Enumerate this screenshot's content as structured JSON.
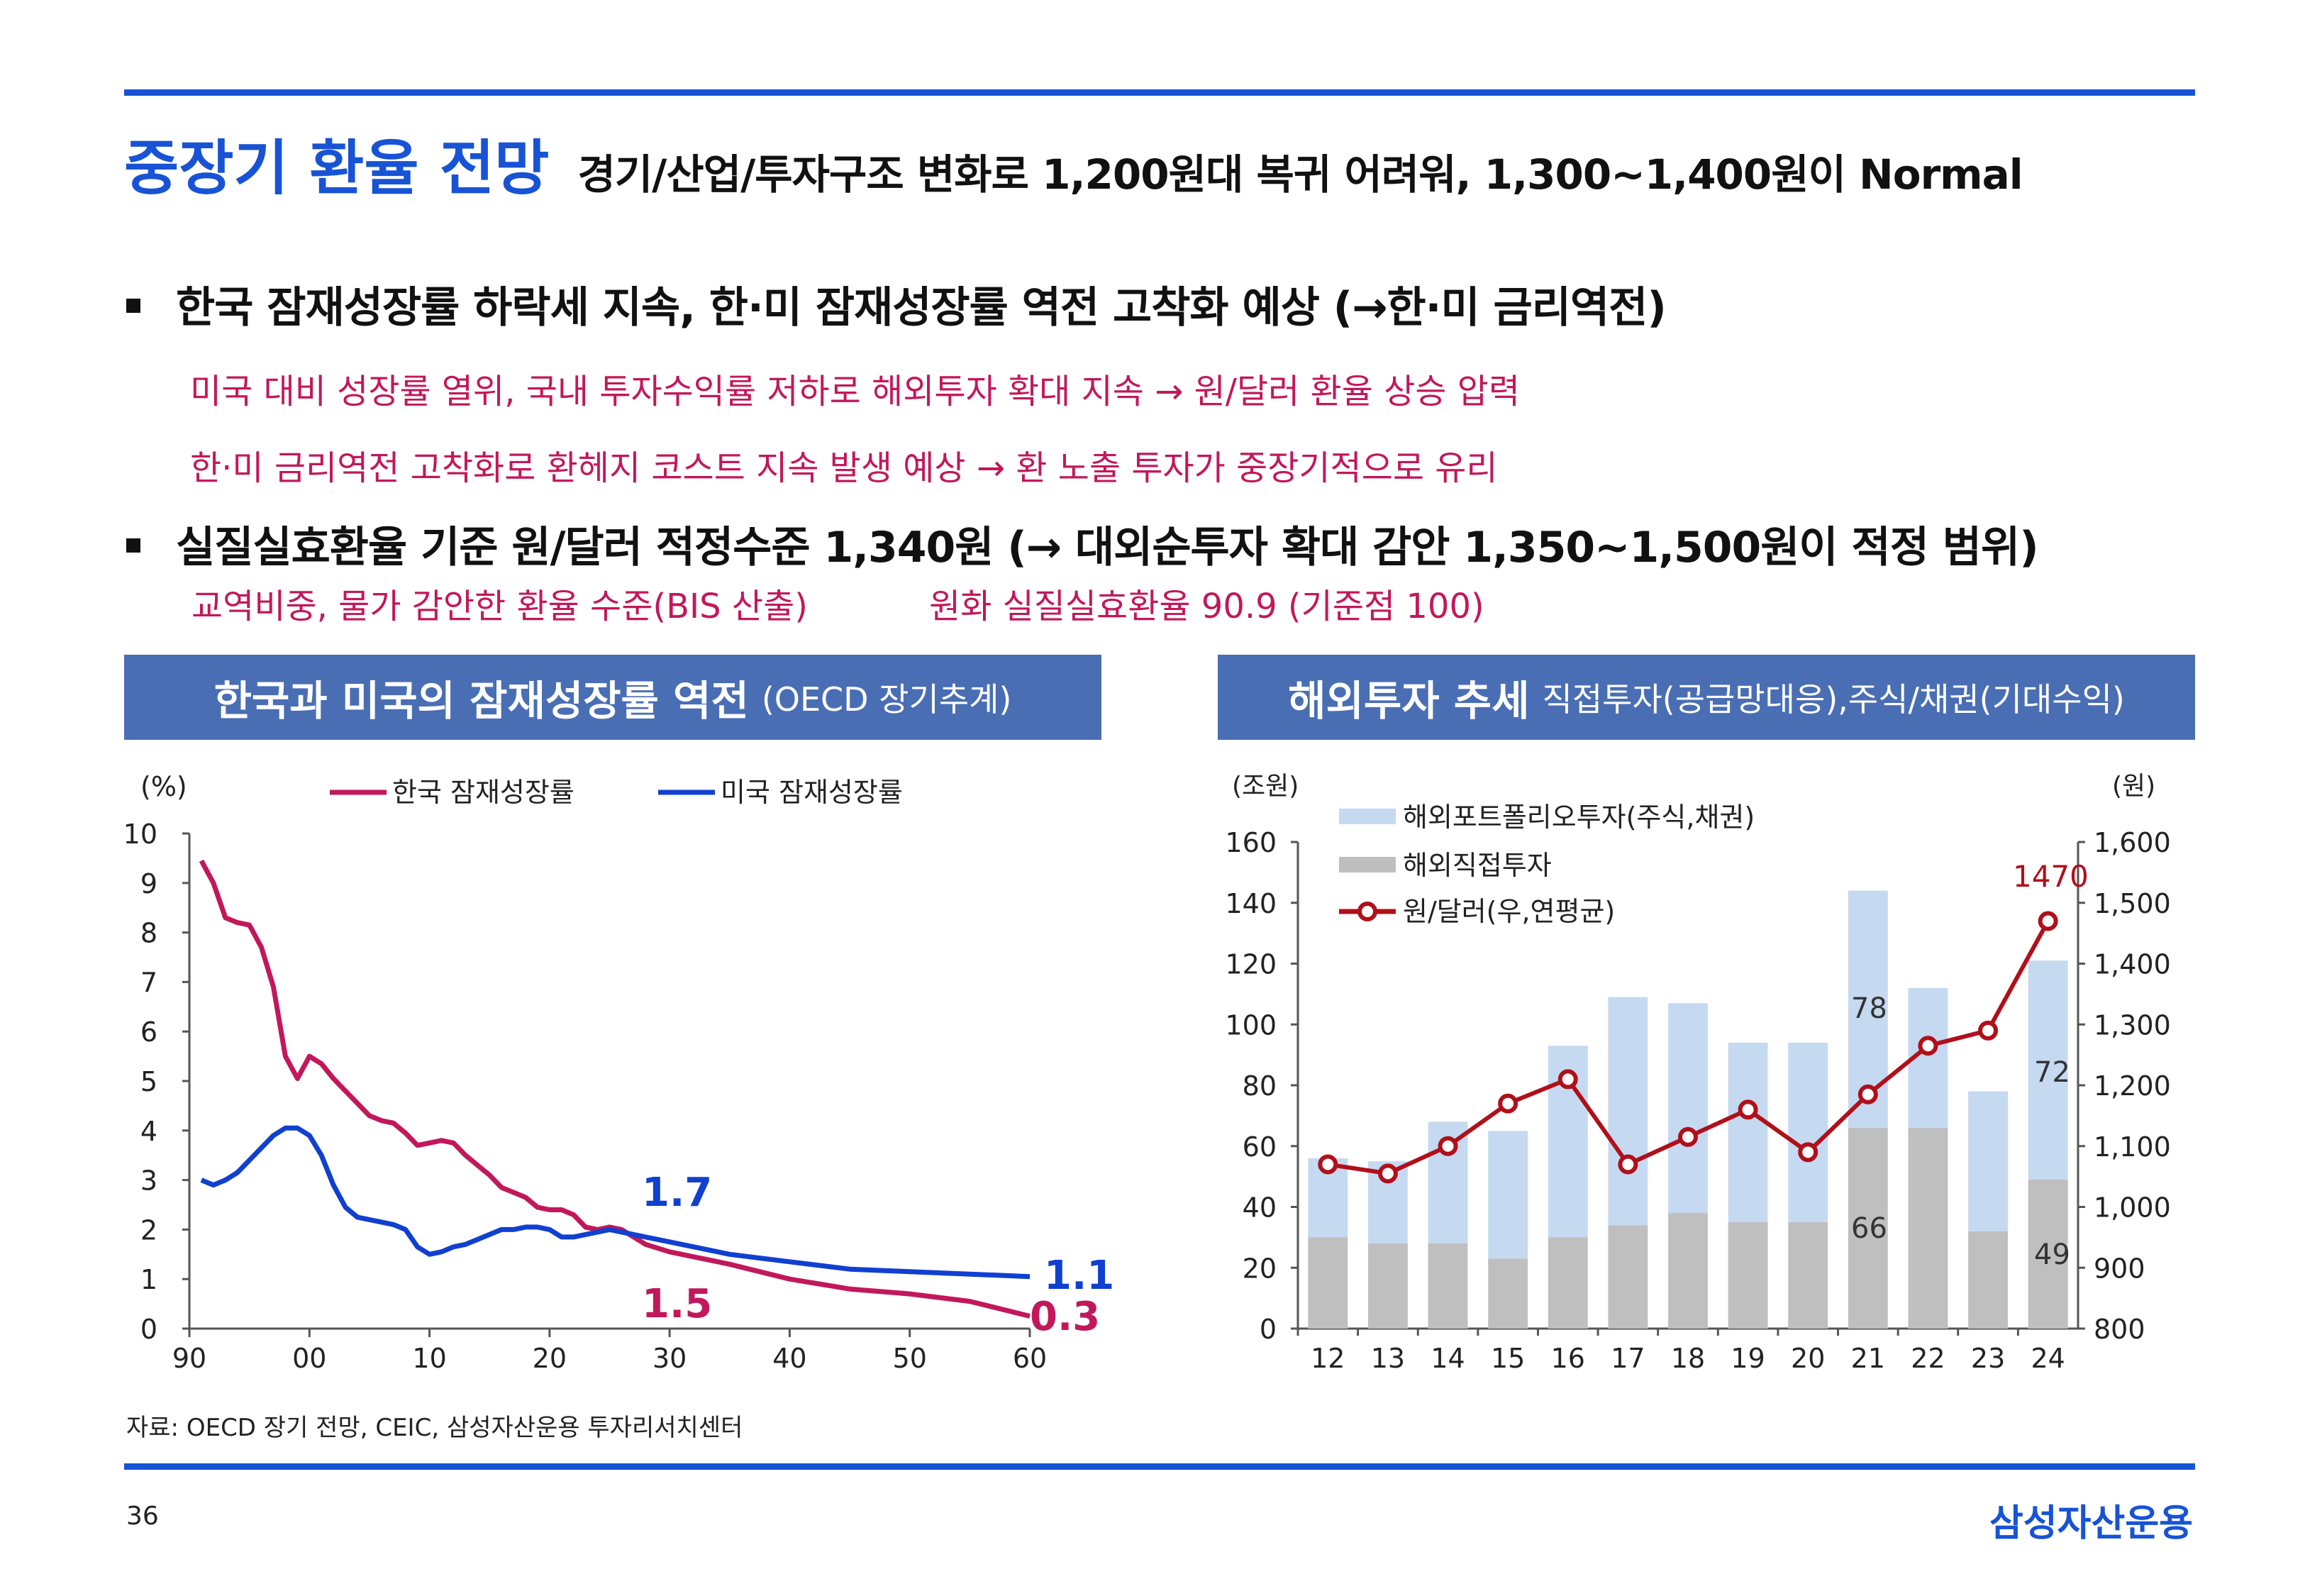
{
  "header": {
    "title": "중장기 환율 전망",
    "subtitle": "경기/산업/투자구조 변화로 1,200원대 복귀 어려워, 1,300~1,400원이 Normal"
  },
  "bullets": [
    {
      "text": "한국 잠재성장률 하락세 지속, 한·미 잠재성장률 역전 고착화 예상 (→한·미 금리역전)",
      "subs": [
        "미국 대비 성장률 열위, 국내 투자수익률 저하로 해외투자 확대 지속 → 원/달러 환율 상승 압력",
        "한·미 금리역전 고착화로 환헤지 코스트 지속 발생 예상 → 환 노출 투자가 중장기적으로 유리"
      ]
    },
    {
      "text": "실질실효환율 기준 원/달러 적정수준 1,340원 (→ 대외순투자 확대 감안 1,350~1,500원이 적정 범위)",
      "subs": [
        "교역비중, 물가 감안한 환율 수준(BIS 산출)",
        "원화 실질실효환율 90.9 (기준점 100)"
      ]
    }
  ],
  "left_panel": {
    "title": "한국과 미국의 잠재성장률 역전",
    "title_note": "(OECD 장기추계)"
  },
  "right_panel": {
    "title": "해외투자 추세",
    "title_note": "직접투자(공급망대응),주식/채권(기대수익)"
  },
  "colors": {
    "accent": "#1753d4",
    "panel": "#4a6eb4",
    "korea": "#c2185b",
    "us": "#1040d0",
    "portfolio": "#c5d9f1",
    "direct": "#bfbfbf",
    "krwusd": "#b0101a"
  },
  "chart_data": [
    {
      "type": "line",
      "unit_label": "(%)",
      "x_tick_labels": [
        "90",
        "00",
        "10",
        "20",
        "30",
        "40",
        "50",
        "60"
      ],
      "y_tick_labels": [
        "0",
        "1",
        "2",
        "3",
        "4",
        "5",
        "6",
        "7",
        "8",
        "9",
        "10"
      ],
      "ylim": [
        0,
        10
      ],
      "xlim": [
        1990,
        2060
      ],
      "series": [
        {
          "name": "한국 잠재성장률",
          "x": [
            1991,
            1992,
            1993,
            1994,
            1995,
            1996,
            1997,
            1998,
            1999,
            2000,
            2001,
            2002,
            2003,
            2004,
            2005,
            2006,
            2007,
            2008,
            2009,
            2010,
            2011,
            2012,
            2013,
            2014,
            2015,
            2016,
            2017,
            2018,
            2019,
            2020,
            2021,
            2022,
            2023,
            2024,
            2025,
            2026,
            2027,
            2028,
            2030,
            2035,
            2040,
            2045,
            2050,
            2055,
            2060
          ],
          "y": [
            9.45,
            9.0,
            8.3,
            8.2,
            8.15,
            7.7,
            6.9,
            5.5,
            5.05,
            5.5,
            5.35,
            5.05,
            4.8,
            4.55,
            4.3,
            4.2,
            4.15,
            3.95,
            3.7,
            3.75,
            3.8,
            3.75,
            3.5,
            3.3,
            3.1,
            2.85,
            2.75,
            2.65,
            2.45,
            2.4,
            2.4,
            2.3,
            2.05,
            2.0,
            2.05,
            2.0,
            1.85,
            1.7,
            1.55,
            1.3,
            1.0,
            0.8,
            0.7,
            0.55,
            0.25
          ]
        },
        {
          "name": "미국 잠재성장률",
          "x": [
            1991,
            1992,
            1993,
            1994,
            1995,
            1996,
            1997,
            1998,
            1999,
            2000,
            2001,
            2002,
            2003,
            2004,
            2005,
            2006,
            2007,
            2008,
            2009,
            2010,
            2011,
            2012,
            2013,
            2014,
            2015,
            2016,
            2017,
            2018,
            2019,
            2020,
            2021,
            2022,
            2023,
            2024,
            2025,
            2026,
            2027,
            2028,
            2030,
            2035,
            2040,
            2045,
            2050,
            2055,
            2060
          ],
          "y": [
            3.0,
            2.9,
            3.0,
            3.15,
            3.4,
            3.65,
            3.9,
            4.05,
            4.05,
            3.9,
            3.5,
            2.9,
            2.45,
            2.25,
            2.2,
            2.15,
            2.1,
            2.0,
            1.65,
            1.5,
            1.55,
            1.65,
            1.7,
            1.8,
            1.9,
            2.0,
            2.0,
            2.05,
            2.05,
            2.0,
            1.85,
            1.85,
            1.9,
            1.95,
            2.0,
            1.95,
            1.9,
            1.85,
            1.75,
            1.5,
            1.35,
            1.2,
            1.15,
            1.1,
            1.05
          ]
        }
      ],
      "annotations": [
        "1.7",
        "1.5",
        "1.1",
        "0.3"
      ]
    },
    {
      "type": "bar",
      "left_unit_label": "(조원)",
      "right_unit_label": "(원)",
      "categories": [
        "12",
        "13",
        "14",
        "15",
        "16",
        "17",
        "18",
        "19",
        "20",
        "21",
        "22",
        "23",
        "24"
      ],
      "left_tick_labels": [
        "0",
        "20",
        "40",
        "60",
        "80",
        "100",
        "120",
        "140",
        "160"
      ],
      "right_tick_labels": [
        "800",
        "900",
        "1,000",
        "1,100",
        "1,200",
        "1,300",
        "1,400",
        "1,500",
        "1,600"
      ],
      "ylim_left": [
        0,
        160
      ],
      "ylim_right": [
        800,
        1600
      ],
      "series": [
        {
          "name": "해외포트폴리오투자(주식,채권)",
          "values": [
            26,
            27,
            40,
            42,
            63,
            75,
            69,
            59,
            59,
            78,
            46,
            46,
            72
          ],
          "stack_on": "해외직접투자"
        },
        {
          "name": "해외직접투자",
          "values": [
            30,
            28,
            28,
            23,
            30,
            34,
            38,
            35,
            35,
            66,
            66,
            32,
            49
          ]
        },
        {
          "name": "원/달러(우,연평균)",
          "axis": "right",
          "values": [
            1070,
            1055,
            1100,
            1170,
            1210,
            1070,
            1115,
            1160,
            1090,
            1185,
            1265,
            1290,
            1470
          ]
        }
      ],
      "annotations": [
        "78",
        "66",
        "72",
        "49",
        "1470"
      ]
    }
  ],
  "source": "자료: OECD 장기 전망, CEIC, 삼성자산운용 투자리서치센터",
  "page_number": "36",
  "brand": "삼성자산운용"
}
